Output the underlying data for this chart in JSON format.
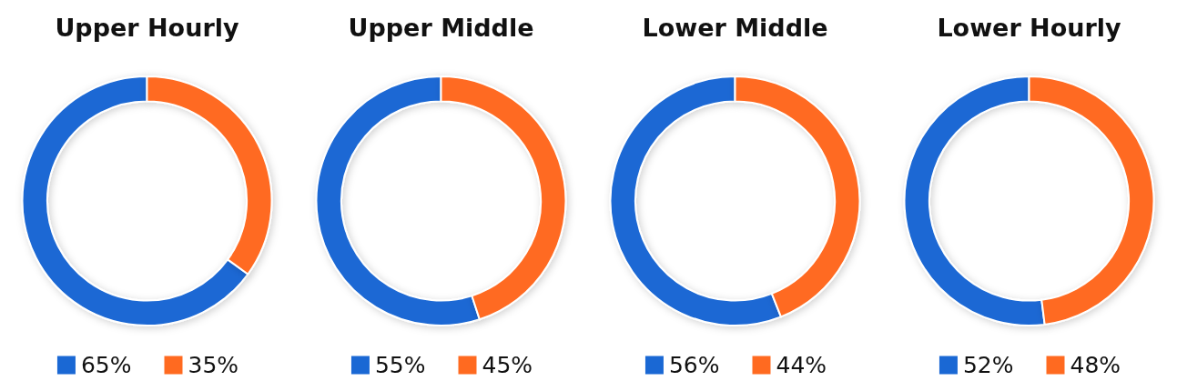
{
  "chart_data": [
    {
      "type": "donut",
      "title": "Upper Hourly",
      "categories": [
        "65%",
        "35%"
      ],
      "values": [
        65,
        35
      ],
      "colors": [
        "#1a68d4",
        "#ff6a20"
      ],
      "legend": "bottom"
    },
    {
      "type": "donut",
      "title": "Upper Middle",
      "categories": [
        "55%",
        "45%"
      ],
      "values": [
        55,
        45
      ],
      "colors": [
        "#1a68d4",
        "#ff6a20"
      ],
      "legend": "bottom"
    },
    {
      "type": "donut",
      "title": "Lower Middle",
      "categories": [
        "56%",
        "44%"
      ],
      "values": [
        56,
        44
      ],
      "colors": [
        "#1a68d4",
        "#ff6a20"
      ],
      "legend": "bottom"
    },
    {
      "type": "donut",
      "title": "Lower Hourly",
      "categories": [
        "52%",
        "48%"
      ],
      "values": [
        52,
        48
      ],
      "colors": [
        "#1a68d4",
        "#ff6a20"
      ],
      "legend": "bottom"
    }
  ]
}
